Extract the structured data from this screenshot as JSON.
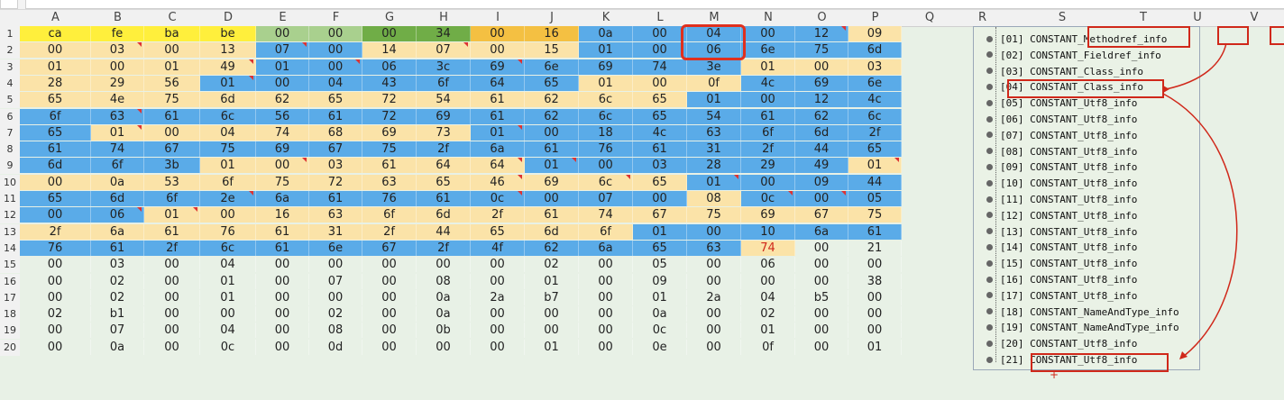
{
  "columns": [
    "A",
    "B",
    "C",
    "D",
    "E",
    "F",
    "G",
    "H",
    "I",
    "J",
    "K",
    "L",
    "M",
    "N",
    "O",
    "P",
    "Q",
    "R",
    "S",
    "T",
    "U",
    "V"
  ],
  "rows": [
    {
      "num": "1",
      "cells": [
        "ca",
        "fe",
        "ba",
        "be",
        "00",
        "00",
        "00",
        "34",
        "00",
        "16",
        "0a",
        "00",
        "04",
        "00",
        "12",
        "09"
      ]
    },
    {
      "num": "2",
      "cells": [
        "00",
        "03",
        "00",
        "13",
        "07",
        "00",
        "14",
        "07",
        "00",
        "15",
        "01",
        "00",
        "06",
        "6e",
        "75",
        "6d"
      ]
    },
    {
      "num": "3",
      "cells": [
        "01",
        "00",
        "01",
        "49",
        "01",
        "00",
        "06",
        "3c",
        "69",
        "6e",
        "69",
        "74",
        "3e",
        "01",
        "00",
        "03"
      ]
    },
    {
      "num": "4",
      "cells": [
        "28",
        "29",
        "56",
        "01",
        "00",
        "04",
        "43",
        "6f",
        "64",
        "65",
        "01",
        "00",
        "0f",
        "4c",
        "69",
        "6e"
      ]
    },
    {
      "num": "5",
      "cells": [
        "65",
        "4e",
        "75",
        "6d",
        "62",
        "65",
        "72",
        "54",
        "61",
        "62",
        "6c",
        "65",
        "01",
        "00",
        "12",
        "4c"
      ]
    },
    {
      "num": "6",
      "cells": [
        "6f",
        "63",
        "61",
        "6c",
        "56",
        "61",
        "72",
        "69",
        "61",
        "62",
        "6c",
        "65",
        "54",
        "61",
        "62",
        "6c"
      ]
    },
    {
      "num": "7",
      "cells": [
        "65",
        "01",
        "00",
        "04",
        "74",
        "68",
        "69",
        "73",
        "01",
        "00",
        "18",
        "4c",
        "63",
        "6f",
        "6d",
        "2f"
      ]
    },
    {
      "num": "8",
      "cells": [
        "61",
        "74",
        "67",
        "75",
        "69",
        "67",
        "75",
        "2f",
        "6a",
        "61",
        "76",
        "61",
        "31",
        "2f",
        "44",
        "65"
      ]
    },
    {
      "num": "9",
      "cells": [
        "6d",
        "6f",
        "3b",
        "01",
        "00",
        "03",
        "61",
        "64",
        "64",
        "01",
        "00",
        "03",
        "28",
        "29",
        "49",
        "01"
      ]
    },
    {
      "num": "10",
      "cells": [
        "00",
        "0a",
        "53",
        "6f",
        "75",
        "72",
        "63",
        "65",
        "46",
        "69",
        "6c",
        "65",
        "01",
        "00",
        "09",
        "44"
      ]
    },
    {
      "num": "11",
      "cells": [
        "65",
        "6d",
        "6f",
        "2e",
        "6a",
        "61",
        "76",
        "61",
        "0c",
        "00",
        "07",
        "00",
        "08",
        "0c",
        "00",
        "05"
      ]
    },
    {
      "num": "12",
      "cells": [
        "00",
        "06",
        "01",
        "00",
        "16",
        "63",
        "6f",
        "6d",
        "2f",
        "61",
        "74",
        "67",
        "75",
        "69",
        "67",
        "75"
      ]
    },
    {
      "num": "13",
      "cells": [
        "2f",
        "6a",
        "61",
        "76",
        "61",
        "31",
        "2f",
        "44",
        "65",
        "6d",
        "6f",
        "01",
        "00",
        "10",
        "6a",
        "61"
      ]
    },
    {
      "num": "14",
      "cells": [
        "76",
        "61",
        "2f",
        "6c",
        "61",
        "6e",
        "67",
        "2f",
        "4f",
        "62",
        "6a",
        "65",
        "63",
        "74",
        "00",
        "21"
      ]
    },
    {
      "num": "15",
      "cells": [
        "00",
        "03",
        "00",
        "04",
        "00",
        "00",
        "00",
        "00",
        "00",
        "02",
        "00",
        "05",
        "00",
        "06",
        "00",
        "00"
      ]
    },
    {
      "num": "16",
      "cells": [
        "00",
        "02",
        "00",
        "01",
        "00",
        "07",
        "00",
        "08",
        "00",
        "01",
        "00",
        "09",
        "00",
        "00",
        "00",
        "38"
      ]
    },
    {
      "num": "17",
      "cells": [
        "00",
        "02",
        "00",
        "01",
        "00",
        "00",
        "00",
        "0a",
        "2a",
        "b7",
        "00",
        "01",
        "2a",
        "04",
        "b5",
        "00"
      ]
    },
    {
      "num": "18",
      "cells": [
        "02",
        "b1",
        "00",
        "00",
        "00",
        "02",
        "00",
        "0a",
        "00",
        "00",
        "00",
        "0a",
        "00",
        "02",
        "00",
        "00"
      ]
    },
    {
      "num": "19",
      "cells": [
        "00",
        "07",
        "00",
        "04",
        "00",
        "08",
        "00",
        "0b",
        "00",
        "00",
        "00",
        "0c",
        "00",
        "01",
        "00",
        "00"
      ]
    },
    {
      "num": "20",
      "cells": [
        "00",
        "0a",
        "00",
        "0c",
        "00",
        "0d",
        "00",
        "00",
        "00",
        "01",
        "00",
        "0e",
        "00",
        "0f",
        "00",
        "01"
      ]
    }
  ],
  "constant_pool": [
    "[01] CONSTANT_Methodref_info",
    "[02] CONSTANT_Fieldref_info",
    "[03] CONSTANT_Class_info",
    "[04] CONSTANT_Class_info",
    "[05] CONSTANT_Utf8_info",
    "[06] CONSTANT_Utf8_info",
    "[07] CONSTANT_Utf8_info",
    "[08] CONSTANT_Utf8_info",
    "[09] CONSTANT_Utf8_info",
    "[10] CONSTANT_Utf8_info",
    "[11] CONSTANT_Utf8_info",
    "[12] CONSTANT_Utf8_info",
    "[13] CONSTANT_Utf8_info",
    "[14] CONSTANT_Utf8_info",
    "[15] CONSTANT_Utf8_info",
    "[16] CONSTANT_Utf8_info",
    "[17] CONSTANT_Utf8_info",
    "[18] CONSTANT_NameAndType_info",
    "[19] CONSTANT_NameAndType_info",
    "[20] CONSTANT_Utf8_info",
    "[21] CONSTANT_Utf8_info"
  ],
  "colors": {
    "magic_yellow": "#ffef3c",
    "version_green": "#a9d08e",
    "version_darkgreen": "#70ad47",
    "count_orange": "#f4c042",
    "blue": "#5aabe8",
    "tan": "#fbe3a8",
    "sheet_green": "#e8f1e6",
    "annotation_red": "#e0301e"
  }
}
